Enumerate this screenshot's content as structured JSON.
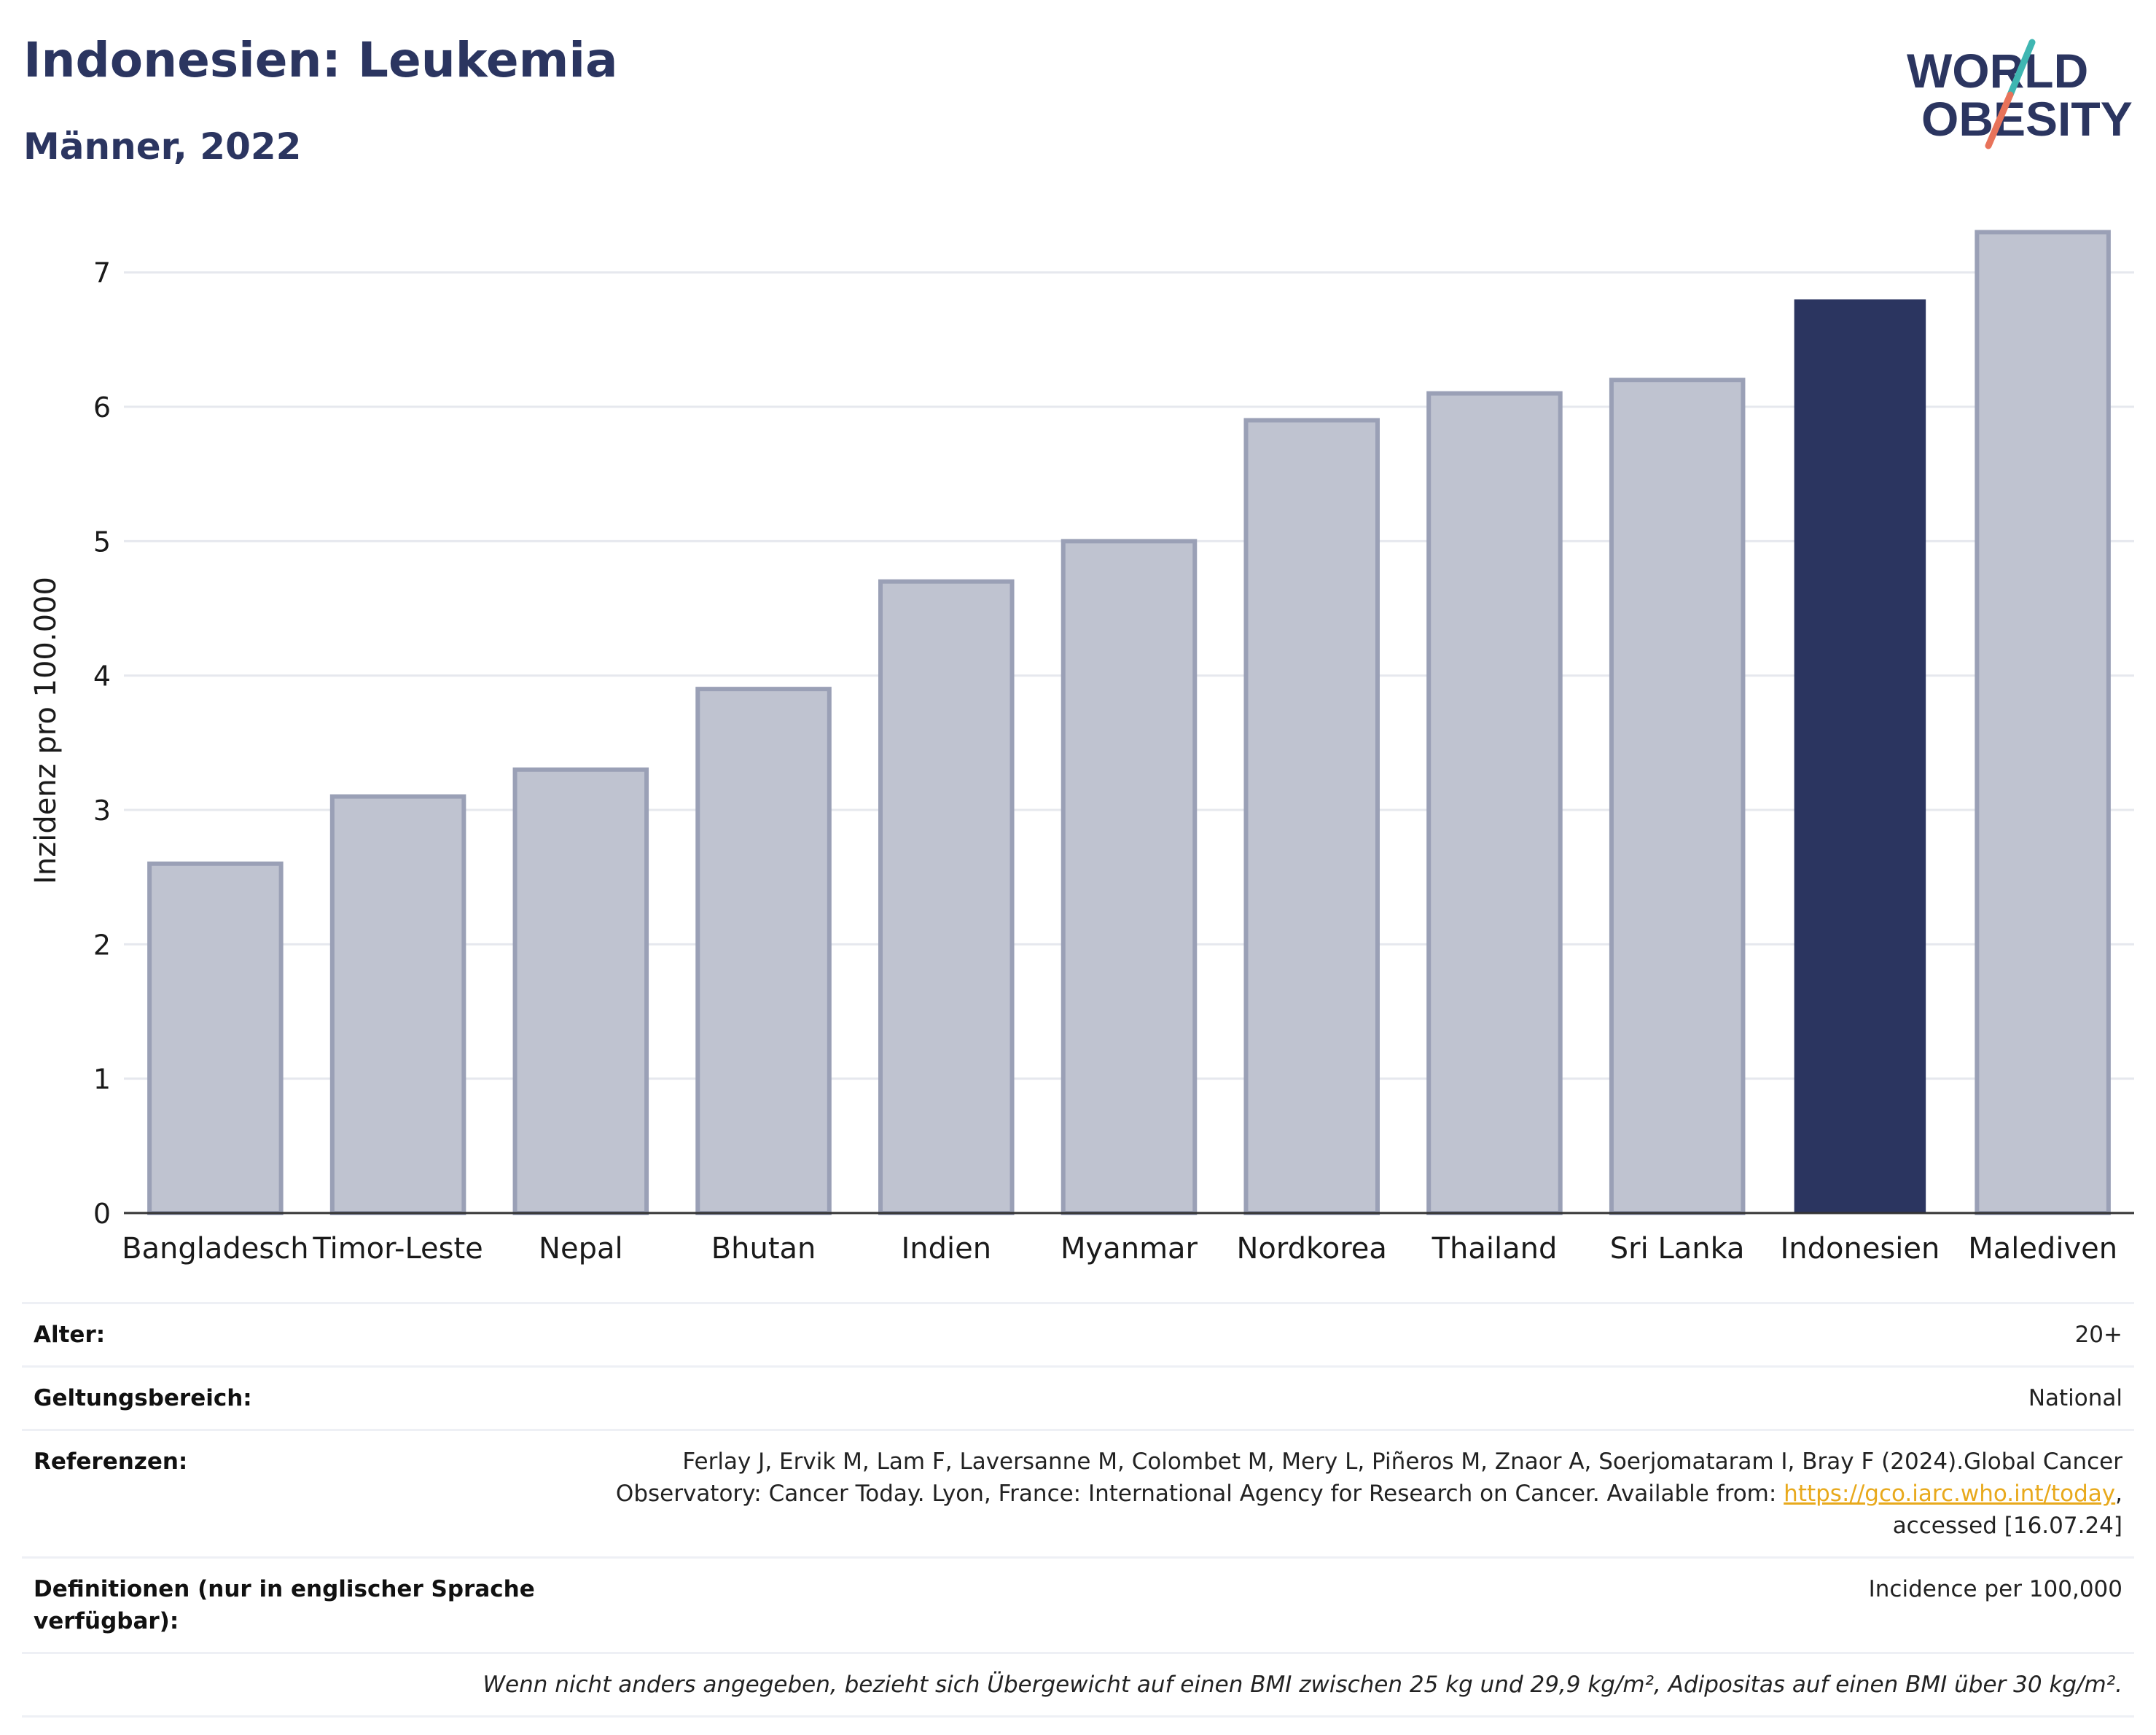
{
  "header": {
    "title": "Indonesien: Leukemia",
    "subtitle": "Männer, 2022"
  },
  "logo": {
    "line1": "WORLD",
    "line2": "OBESITY",
    "accent_colors": [
      "#3fb6b2",
      "#e8735a"
    ]
  },
  "colors": {
    "highlight": "#2b3560",
    "bar": "#bfc3d0",
    "bar_edge": "#9aa0b6",
    "grid": "#e6e8ee",
    "axis": "#333333"
  },
  "chart_data": {
    "type": "bar",
    "title": "",
    "xlabel": "",
    "ylabel": "Inzidenz pro 100.000",
    "ylim": [
      0,
      7.4
    ],
    "yticks": [
      0,
      1,
      2,
      3,
      4,
      5,
      6,
      7
    ],
    "grid": true,
    "highlight": "Indonesien",
    "categories": [
      "Bangladesch",
      "Timor-Leste",
      "Nepal",
      "Bhutan",
      "Indien",
      "Myanmar",
      "Nordkorea",
      "Thailand",
      "Sri Lanka",
      "Indonesien",
      "Malediven"
    ],
    "values": [
      2.6,
      3.1,
      3.3,
      3.9,
      4.7,
      5.0,
      5.9,
      6.1,
      6.2,
      6.8,
      7.3
    ]
  },
  "info": {
    "age_label": "Alter:",
    "age_value": "20+",
    "scope_label": "Geltungsbereich:",
    "scope_value": "National",
    "refs_label": "Referenzen:",
    "refs_text_1": "Ferlay J, Ervik M, Lam F, Laversanne M, Colombet M, Mery L, Piñeros M, Znaor A, Soerjomataram I, Bray F (2024).Global Cancer",
    "refs_text_2": "Observatory: Cancer Today. Lyon, France: International Agency for Research on Cancer. Available from: ",
    "refs_link": "https://gco.iarc.who.int/today",
    "refs_text_3": ",",
    "refs_text_4": "accessed [16.07.24]",
    "def_label": "Definitionen (nur in englischer Sprache verfügbar):",
    "def_value": "Incidence per 100,000",
    "note": "Wenn nicht anders angegeben, bezieht sich Übergewicht auf einen BMI zwischen 25 kg und 29,9 kg/m², Adipositas auf einen BMI über 30 kg/m²."
  }
}
